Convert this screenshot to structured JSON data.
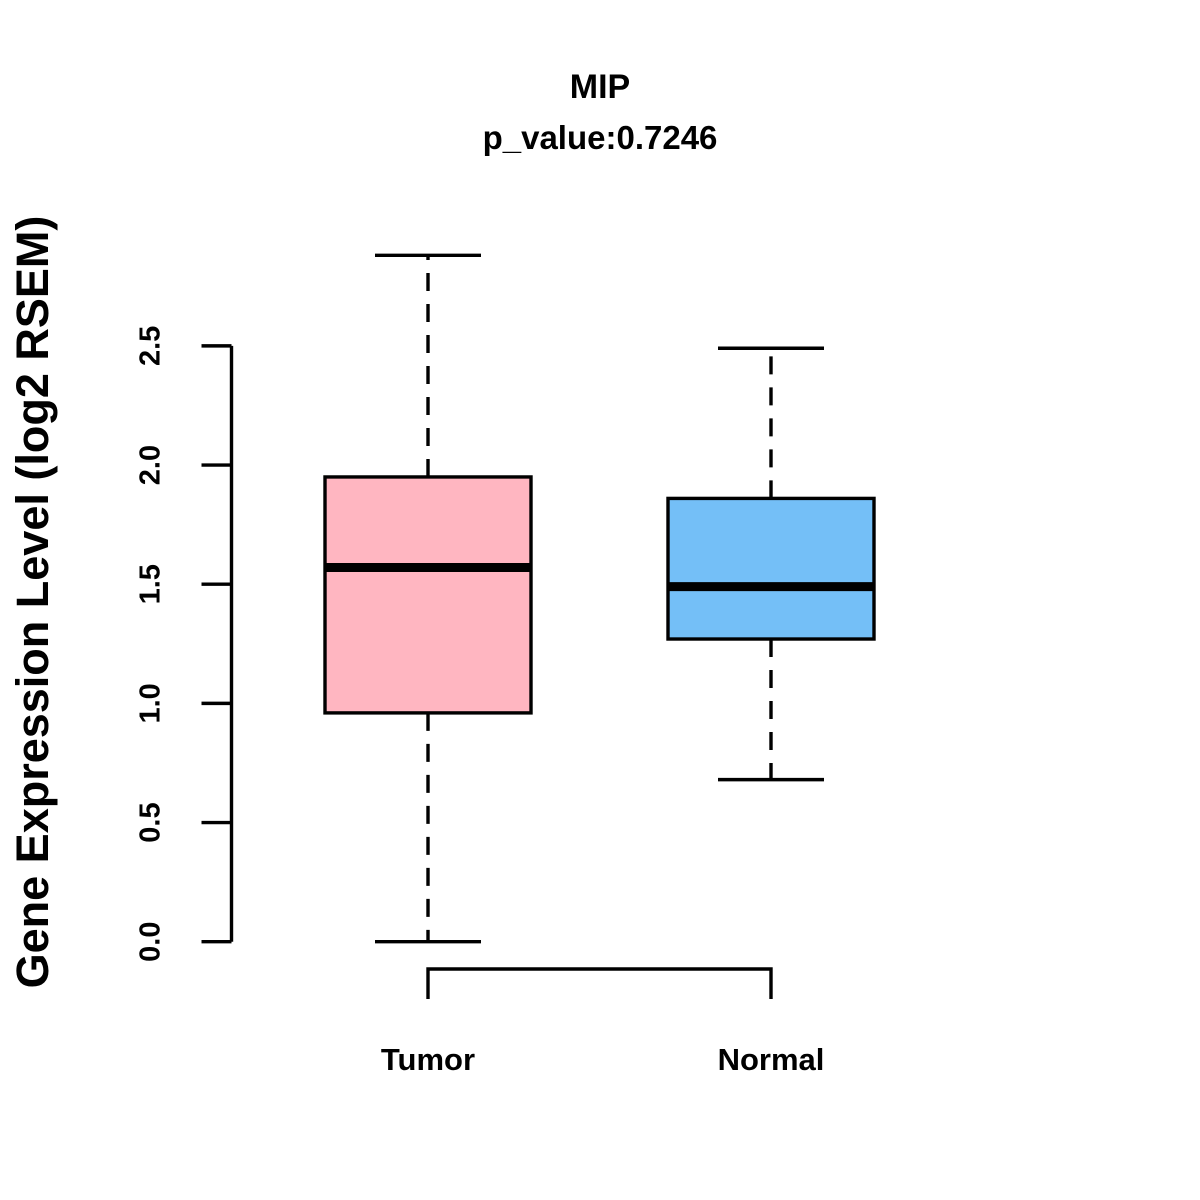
{
  "title": "MIP",
  "subtitle": "p_value:0.7246",
  "ylabel": "Gene Expression Level (log2 RSEM)",
  "chart_data": {
    "type": "boxplot",
    "title": "MIP",
    "subtitle": "p_value:0.7246",
    "ylabel": "Gene Expression Level (log2 RSEM)",
    "categories": [
      "Tumor",
      "Normal"
    ],
    "series": [
      {
        "name": "Tumor",
        "color": "#FFB6C1",
        "whisker_low": 0.0,
        "q1": 0.96,
        "median": 1.57,
        "q3": 1.95,
        "whisker_high": 2.88
      },
      {
        "name": "Normal",
        "color": "#74BFF7",
        "whisker_low": 0.68,
        "q1": 1.27,
        "median": 1.49,
        "q3": 1.86,
        "whisker_high": 2.49
      }
    ],
    "yticks": [
      0.0,
      0.5,
      1.0,
      1.5,
      2.0,
      2.5
    ],
    "ytick_labels": [
      "0.0",
      "0.5",
      "1.0",
      "1.5",
      "2.0",
      "2.5"
    ],
    "ylim": [
      0.0,
      2.5
    ],
    "grid": false,
    "legend": "none",
    "line_color": "#000000",
    "whisker_style": "dashed"
  }
}
